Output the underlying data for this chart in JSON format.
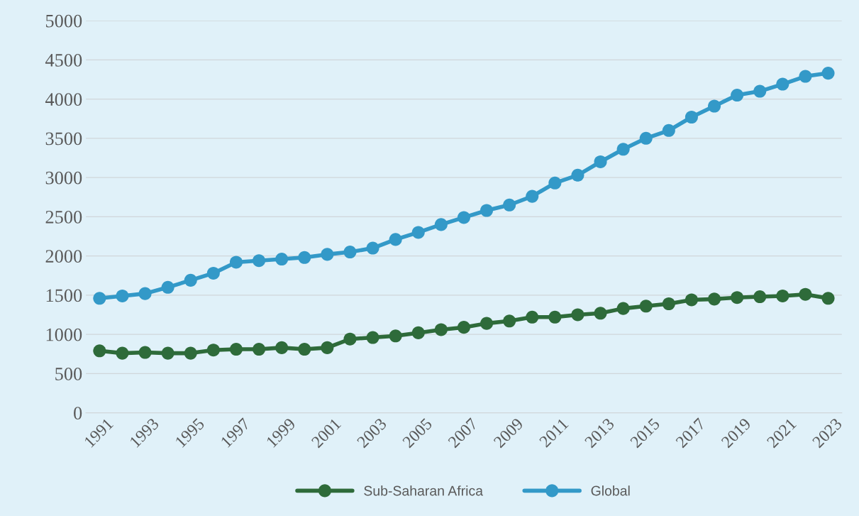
{
  "chart_data": {
    "type": "line",
    "categories": [
      "1991",
      null,
      "1993",
      null,
      "1995",
      null,
      "1997",
      null,
      "1999",
      null,
      "2001",
      null,
      "2003",
      null,
      "2005",
      null,
      "2007",
      null,
      "2009",
      null,
      "2011",
      null,
      "2013",
      null,
      "2015",
      null,
      "2017",
      null,
      "2019",
      null,
      "2021",
      null,
      "2023"
    ],
    "series": [
      {
        "name": "Sub-Saharan Africa",
        "color": "#2e6b3a",
        "values": [
          790,
          760,
          770,
          760,
          760,
          800,
          810,
          810,
          830,
          810,
          830,
          940,
          960,
          980,
          1020,
          1060,
          1090,
          1140,
          1170,
          1220,
          1220,
          1250,
          1270,
          1330,
          1360,
          1390,
          1440,
          1450,
          1470,
          1480,
          1490,
          1510,
          1460
        ]
      },
      {
        "name": "Global",
        "color": "#3399c8",
        "values": [
          1460,
          1490,
          1520,
          1600,
          1690,
          1780,
          1920,
          1940,
          1960,
          1980,
          2020,
          2050,
          2100,
          2210,
          2300,
          2400,
          2490,
          2580,
          2650,
          2760,
          2930,
          3030,
          3200,
          3360,
          3500,
          3600,
          3770,
          3910,
          4050,
          4100,
          4190,
          4290,
          4330
        ]
      }
    ],
    "ylim": [
      0,
      5000
    ],
    "yticks": [
      0,
      500,
      1000,
      1500,
      2000,
      2500,
      3000,
      3500,
      4000,
      4500,
      5000
    ],
    "grid": "y",
    "legend": "bottom",
    "marker": "circle",
    "line_style": "solid"
  }
}
